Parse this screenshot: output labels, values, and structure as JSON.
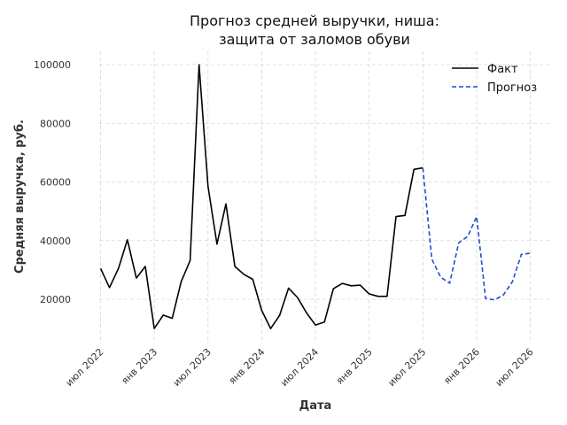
{
  "chart_data": {
    "type": "line",
    "title": [
      "Прогноз средней выручки, ниша:",
      "защита от заломов обуви"
    ],
    "xlabel": "Дата",
    "ylabel": "Средняя выручка, руб.",
    "x_ticks": [
      "июл 2022",
      "янв 2023",
      "июл 2023",
      "янв 2024",
      "июл 2024",
      "янв 2025",
      "июл 2025",
      "янв 2026",
      "июл 2026"
    ],
    "y_ticks": [
      20000,
      40000,
      60000,
      80000,
      100000
    ],
    "ylim": [
      5000,
      105000
    ],
    "grid": true,
    "legend_position": "top-right",
    "x_start": "2022-07",
    "series": [
      {
        "name": "Факт",
        "color": "#000000",
        "line_style": "solid",
        "x": [
          "2022-07",
          "2022-08",
          "2022-09",
          "2022-10",
          "2022-11",
          "2022-12",
          "2023-01",
          "2023-02",
          "2023-03",
          "2023-04",
          "2023-05",
          "2023-06",
          "2023-07",
          "2023-08",
          "2023-09",
          "2023-10",
          "2023-11",
          "2023-12",
          "2024-01",
          "2024-02",
          "2024-03",
          "2024-04",
          "2024-05",
          "2024-06",
          "2024-07",
          "2024-08",
          "2024-09",
          "2024-10",
          "2024-11",
          "2024-12",
          "2025-01",
          "2025-02",
          "2025-03",
          "2025-04",
          "2025-05",
          "2025-06",
          "2025-07"
        ],
        "y": [
          30500,
          24000,
          30500,
          40300,
          27200,
          31200,
          10000,
          14600,
          13500,
          26000,
          33200,
          100000,
          58500,
          38800,
          52500,
          31200,
          28500,
          26800,
          16200,
          10000,
          14500,
          23800,
          20600,
          15400,
          11200,
          12200,
          23600,
          25400,
          24600,
          24800,
          21800,
          21000,
          21000,
          48200,
          48600,
          64300,
          64800
        ]
      },
      {
        "name": "Прогноз",
        "color": "#1f4fcf",
        "line_style": "dashed",
        "x": [
          "2025-07",
          "2025-08",
          "2025-09",
          "2025-10",
          "2025-11",
          "2025-12",
          "2026-01",
          "2026-02",
          "2026-03",
          "2026-04",
          "2026-05",
          "2026-06",
          "2026-07"
        ],
        "y": [
          64800,
          33700,
          27500,
          25500,
          39300,
          41400,
          48200,
          20300,
          19800,
          21500,
          26000,
          35300,
          35700
        ]
      }
    ]
  }
}
